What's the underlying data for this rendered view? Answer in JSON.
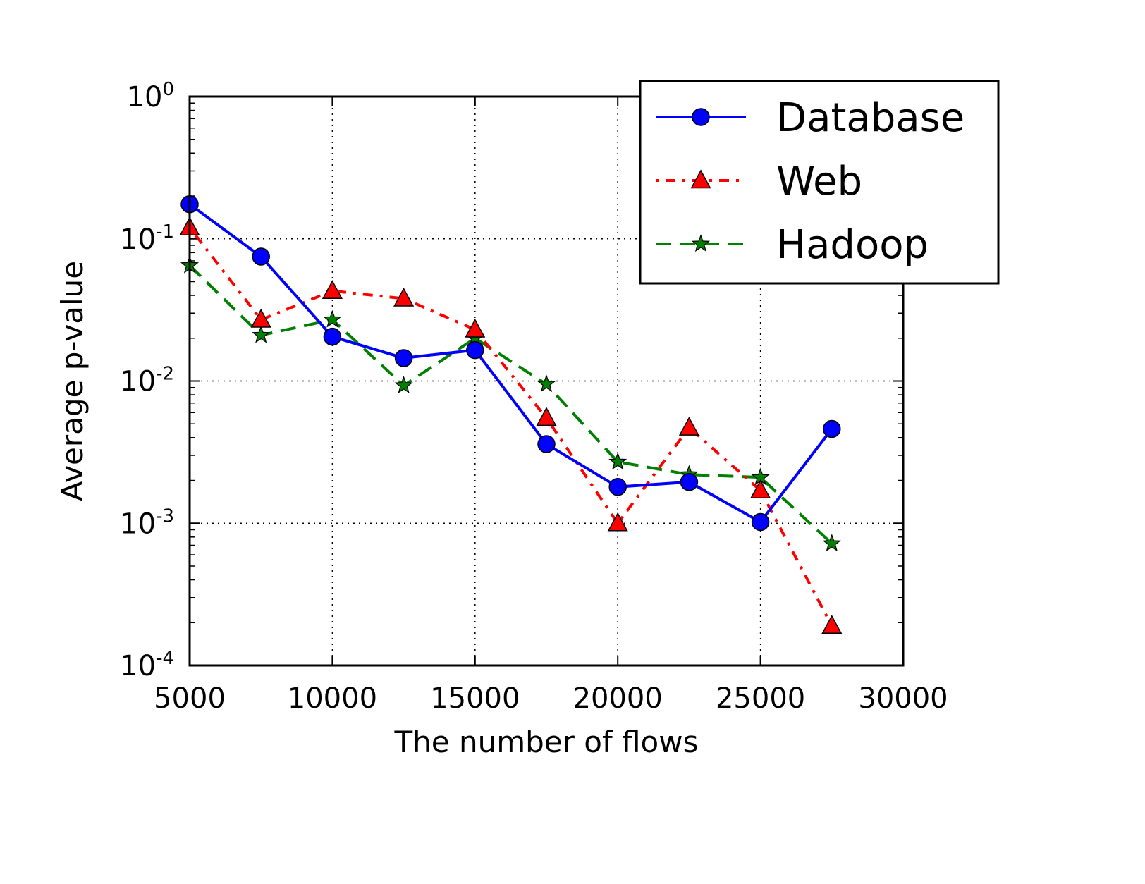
{
  "chart_data": {
    "type": "line",
    "xlabel": "The number of flows",
    "ylabel": "Average p-value",
    "xlim": [
      5000,
      30000
    ],
    "ylim": [
      0.0001,
      1
    ],
    "yscale": "log",
    "xticks": [
      5000,
      10000,
      15000,
      20000,
      25000,
      30000
    ],
    "xtick_labels": [
      "5000",
      "10000",
      "15000",
      "20000",
      "25000",
      "30000"
    ],
    "yticks": [
      {
        "value": 1,
        "base": "10",
        "exp": "0"
      },
      {
        "value": 0.1,
        "base": "10",
        "exp": "-1"
      },
      {
        "value": 0.01,
        "base": "10",
        "exp": "-2"
      },
      {
        "value": 0.001,
        "base": "10",
        "exp": "-3"
      },
      {
        "value": 0.0001,
        "base": "10",
        "exp": "-4"
      }
    ],
    "grid": true,
    "legend_position": "top-right",
    "x": [
      5000,
      7500,
      10000,
      12500,
      15000,
      17500,
      20000,
      22500,
      25000,
      27500
    ],
    "series": [
      {
        "name": "Database",
        "color": "#0000ff",
        "marker": "circle",
        "linestyle": "solid",
        "values": [
          0.175,
          0.075,
          0.0205,
          0.0145,
          0.0165,
          0.0036,
          0.0018,
          0.00195,
          0.00102,
          0.0046
        ]
      },
      {
        "name": "Web",
        "color": "#ff0000",
        "marker": "triangle",
        "linestyle": "dashdot",
        "values": [
          0.12,
          0.027,
          0.043,
          0.038,
          0.023,
          0.0055,
          0.001,
          0.0047,
          0.0017,
          0.00019
        ]
      },
      {
        "name": "Hadoop",
        "color": "#008000",
        "marker": "star",
        "linestyle": "dashed",
        "values": [
          0.065,
          0.021,
          0.027,
          0.0093,
          0.02,
          0.0095,
          0.0027,
          0.0022,
          0.0021,
          0.00072
        ]
      }
    ]
  }
}
